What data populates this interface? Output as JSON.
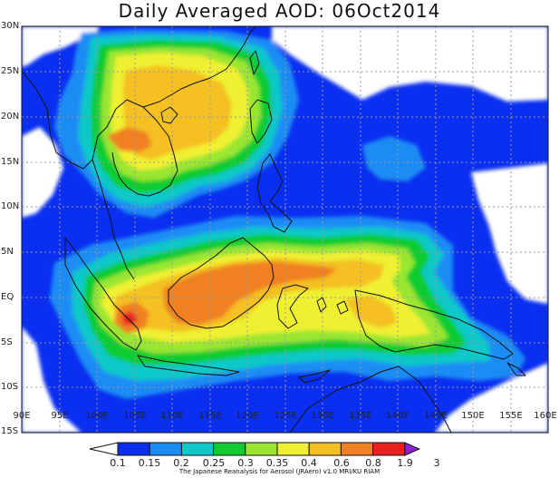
{
  "title": "Daily Averaged AOD: 06Oct2014",
  "credit": "The Japanese Reanalysis for Aerosol (JRAero) v1.0 MRI/KU RIAM",
  "lat_labels": [
    "30N",
    "25N",
    "20N",
    "15N",
    "10N",
    "5N",
    "EQ",
    "5S",
    "10S",
    "15S"
  ],
  "lon_labels": [
    "90E",
    "95E",
    "100E",
    "105E",
    "110E",
    "115E",
    "120E",
    "125E",
    "130E",
    "135E",
    "140E",
    "145E",
    "150E",
    "155E",
    "160E"
  ],
  "legend": {
    "ticks": [
      "0.1",
      "0.15",
      "0.2",
      "0.25",
      "0.3",
      "0.35",
      "0.4",
      "0.6",
      "0.8",
      "1.9",
      "3"
    ],
    "colors": [
      "#ffffff",
      "#0a2ff0",
      "#1a8cf5",
      "#10c8c8",
      "#10cc30",
      "#9ae630",
      "#f0f030",
      "#f4c020",
      "#f08020",
      "#e82020",
      "#9020d0"
    ]
  },
  "palette": {
    "blue": "#0a2ff0",
    "lightblue": "#1a8cf5",
    "cyan": "#10c8c8",
    "green": "#10cc30",
    "yellowgreen": "#9ae630",
    "yellow": "#f0f030",
    "orangeyellow": "#f4c020",
    "orange": "#f08020",
    "red": "#e82020",
    "white": "#ffffff"
  }
}
